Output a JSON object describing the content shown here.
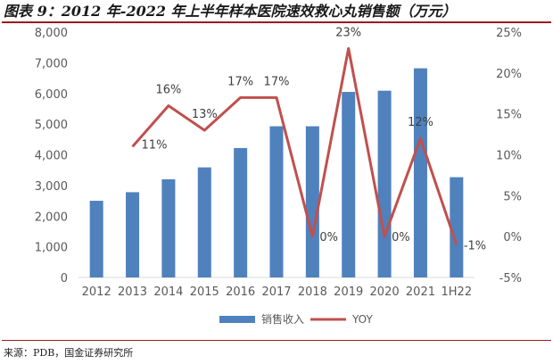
{
  "figure": {
    "title": "图表 9：2012 年-2022 年上半年样本医院速效救心丸销售额（万元）",
    "source": "来源：PDB，国金证券研究所"
  },
  "colors": {
    "bar": "#4f81bd",
    "line": "#c0504d",
    "rule": "#9b1b1f",
    "axis_text": "#595959",
    "label_text": "#404040"
  },
  "chart_data": {
    "type": "bar+line",
    "categories": [
      "2012",
      "2013",
      "2014",
      "2015",
      "2016",
      "2017",
      "2018",
      "2019",
      "2020",
      "2021",
      "1H22"
    ],
    "series": [
      {
        "name": "销售收入",
        "type": "bar",
        "axis": "left",
        "values": [
          2500,
          2780,
          3200,
          3590,
          4220,
          4930,
          4930,
          6050,
          6090,
          6820,
          3270
        ]
      },
      {
        "name": "YOY",
        "type": "line",
        "axis": "right",
        "values": [
          null,
          11,
          16,
          13,
          17,
          17,
          0,
          23,
          0,
          12,
          -1
        ],
        "labels": [
          "",
          "11%",
          "16%",
          "13%",
          "17%",
          "17%",
          "0%",
          "23%",
          "0%",
          "12%",
          "-1%"
        ]
      }
    ],
    "y_left": {
      "min": 0,
      "max": 8000,
      "step": 1000,
      "ticks": [
        "0",
        "1,000",
        "2,000",
        "3,000",
        "4,000",
        "5,000",
        "6,000",
        "7,000",
        "8,000"
      ]
    },
    "y_right": {
      "min": -5,
      "max": 25,
      "step": 5,
      "ticks": [
        "-5%",
        "0%",
        "5%",
        "10%",
        "15%",
        "20%",
        "25%"
      ]
    },
    "grid": false,
    "legend_position": "bottom"
  }
}
